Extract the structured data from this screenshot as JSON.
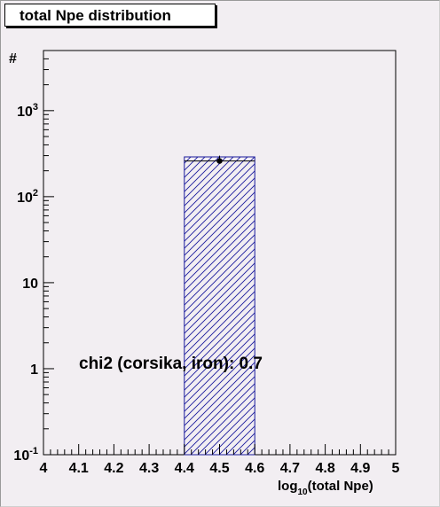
{
  "chart_data": {
    "type": "bar",
    "title": "total Npe distribution",
    "ylabel": "#",
    "xlabel_main": "log",
    "xlabel_sub": "10",
    "xlabel_rest": "(total Npe)",
    "x_ticks": [
      "4",
      "4.1",
      "4.2",
      "4.3",
      "4.4",
      "4.5",
      "4.6",
      "4.7",
      "4.8",
      "4.9",
      "5"
    ],
    "y_ticks": [
      {
        "value": 0.1,
        "base": "10",
        "exp": "-1"
      },
      {
        "value": 1,
        "base": "1",
        "exp": ""
      },
      {
        "value": 10,
        "base": "10",
        "exp": ""
      },
      {
        "value": 100,
        "base": "10",
        "exp": "2"
      },
      {
        "value": 1000,
        "base": "10",
        "exp": "3"
      }
    ],
    "xlim": [
      4,
      5
    ],
    "ylim": [
      0.1,
      5000
    ],
    "y_scale": "log",
    "grid": false,
    "bins": [
      {
        "x_low": 4.4,
        "x_high": 4.6,
        "value": 290
      }
    ],
    "points": [
      {
        "x": 4.5,
        "y": 260,
        "err_low": 245,
        "err_high": 300
      }
    ],
    "annotation": "chi2 (corsika, iron): 0.7",
    "colors": {
      "bar_edge": "#1a1a9c",
      "hatch": "#1a1a9c",
      "background": "#f2eef2",
      "frame": "#000000"
    }
  }
}
